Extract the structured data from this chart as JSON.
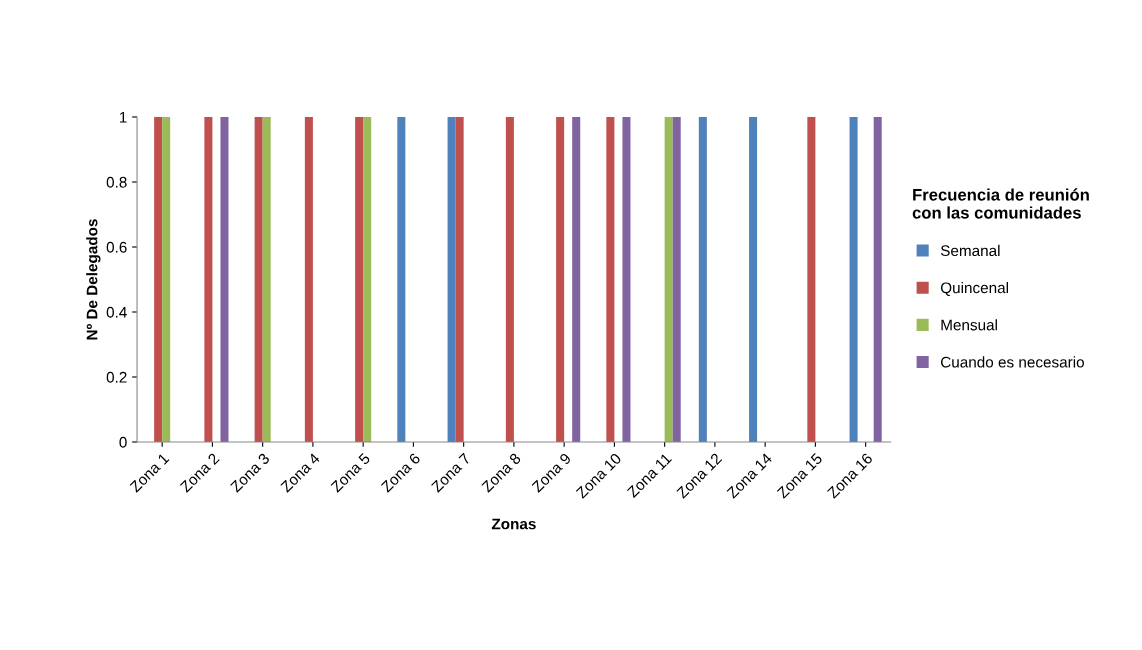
{
  "chart_data": {
    "type": "bar",
    "xlabel": "Zonas",
    "ylabel": "Nº De Delegados",
    "legend_title": "Frecuencia de reunión\ncon las comunidades",
    "categories": [
      "Zona 1",
      "Zona 2",
      "Zona 3",
      "Zona 4",
      "Zona 5",
      "Zona 6",
      "Zona 7",
      "Zona 8",
      "Zona 9",
      "Zona 10",
      "Zona 11",
      "Zona 12",
      "Zona 14",
      "Zona 15",
      "Zona 16"
    ],
    "series": [
      {
        "name": "Semanal",
        "color": "#4f81bd",
        "values": [
          0,
          0,
          0,
          0,
          0,
          1,
          1,
          0,
          0,
          0,
          0,
          1,
          1,
          0,
          1
        ]
      },
      {
        "name": "Quincenal",
        "color": "#c0504d",
        "values": [
          1,
          1,
          1,
          1,
          1,
          0,
          1,
          1,
          1,
          1,
          0,
          0,
          0,
          1,
          0
        ]
      },
      {
        "name": "Mensual",
        "color": "#9bbb59",
        "values": [
          1,
          0,
          1,
          0,
          1,
          0,
          0,
          0,
          0,
          0,
          1,
          0,
          0,
          0,
          0
        ]
      },
      {
        "name": "Cuando es necesario",
        "color": "#8064a2",
        "values": [
          0,
          1,
          0,
          0,
          0,
          0,
          0,
          0,
          1,
          1,
          1,
          0,
          0,
          0,
          1
        ]
      }
    ],
    "ylim": [
      0,
      1
    ],
    "yticks": [
      0,
      0.2,
      0.4,
      0.6,
      0.8,
      1
    ],
    "grid": false,
    "legend": "right"
  }
}
